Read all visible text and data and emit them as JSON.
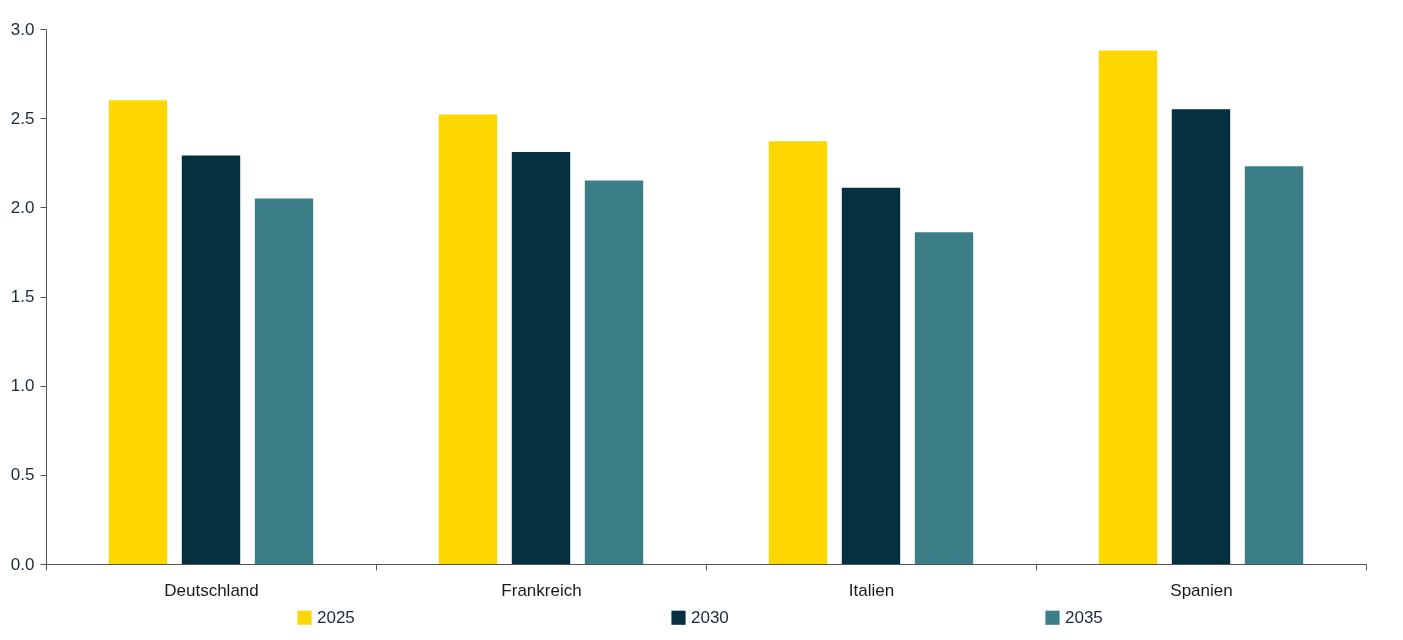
{
  "chart_data": {
    "type": "bar",
    "categories": [
      "Deutschland",
      "Frankreich",
      "Italien",
      "Spanien"
    ],
    "series": [
      {
        "name": "2025",
        "color": "#ffd700",
        "values": [
          2.6,
          2.52,
          2.37,
          2.88
        ]
      },
      {
        "name": "2030",
        "color": "#04303f",
        "values": [
          2.29,
          2.31,
          2.11,
          2.55
        ]
      },
      {
        "name": "2035",
        "color": "#3c7e88",
        "values": [
          2.05,
          2.15,
          1.86,
          2.23
        ]
      }
    ],
    "ylim": [
      0,
      3
    ],
    "yticks": [
      {
        "value": 0,
        "label": "0.0"
      },
      {
        "value": 0.5,
        "label": "0.5"
      },
      {
        "value": 1,
        "label": "1.0"
      },
      {
        "value": 1.5,
        "label": "1.5"
      },
      {
        "value": 2,
        "label": "2.0"
      },
      {
        "value": 2.5,
        "label": "2.5"
      },
      {
        "value": 3,
        "label": "3.0"
      }
    ],
    "grid": false,
    "legend": "bottom"
  }
}
